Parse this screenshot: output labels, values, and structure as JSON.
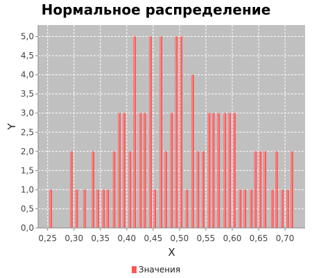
{
  "chart_data": {
    "type": "bar",
    "title": "Нормальное распределение",
    "xlabel": "X",
    "ylabel": "Y",
    "xlim": [
      0.232,
      0.738
    ],
    "ylim": [
      0,
      5.3
    ],
    "bar_width": 0.0048,
    "x_ticks": [
      "0,25",
      "0,30",
      "0,35",
      "0,40",
      "0,45",
      "0,50",
      "0,55",
      "0,60",
      "0,65",
      "0,70"
    ],
    "y_ticks": [
      "0,0",
      "0,5",
      "1,0",
      "1,5",
      "2,0",
      "2,5",
      "3,0",
      "3,5",
      "4,0",
      "4,5",
      "5,0"
    ],
    "grid": true,
    "legend": "bottom",
    "colors": {
      "bar": "#ff5555",
      "bar_highlight": "#ff9090",
      "plot_bg": "#c0c0c0",
      "grid": "#ffffff"
    },
    "series": [
      {
        "name": "Значения",
        "x": [
          0.256,
          0.295,
          0.305,
          0.32,
          0.336,
          0.345,
          0.356,
          0.364,
          0.376,
          0.386,
          0.395,
          0.406,
          0.415,
          0.426,
          0.434,
          0.445,
          0.453,
          0.465,
          0.474,
          0.485,
          0.494,
          0.503,
          0.514,
          0.525,
          0.535,
          0.545,
          0.556,
          0.564,
          0.574,
          0.586,
          0.595,
          0.604,
          0.615,
          0.624,
          0.636,
          0.644,
          0.653,
          0.662,
          0.676,
          0.684,
          0.695,
          0.705,
          0.713
        ],
        "values": [
          1,
          2,
          1,
          1,
          2,
          1,
          1,
          1,
          2,
          3,
          3,
          2,
          5,
          3,
          3,
          5,
          1,
          5,
          2,
          3,
          5,
          5,
          1,
          4,
          2,
          2,
          3,
          3,
          3,
          3,
          3,
          3,
          1,
          1,
          1,
          2,
          2,
          2,
          1,
          2,
          1,
          1,
          2
        ]
      }
    ]
  }
}
